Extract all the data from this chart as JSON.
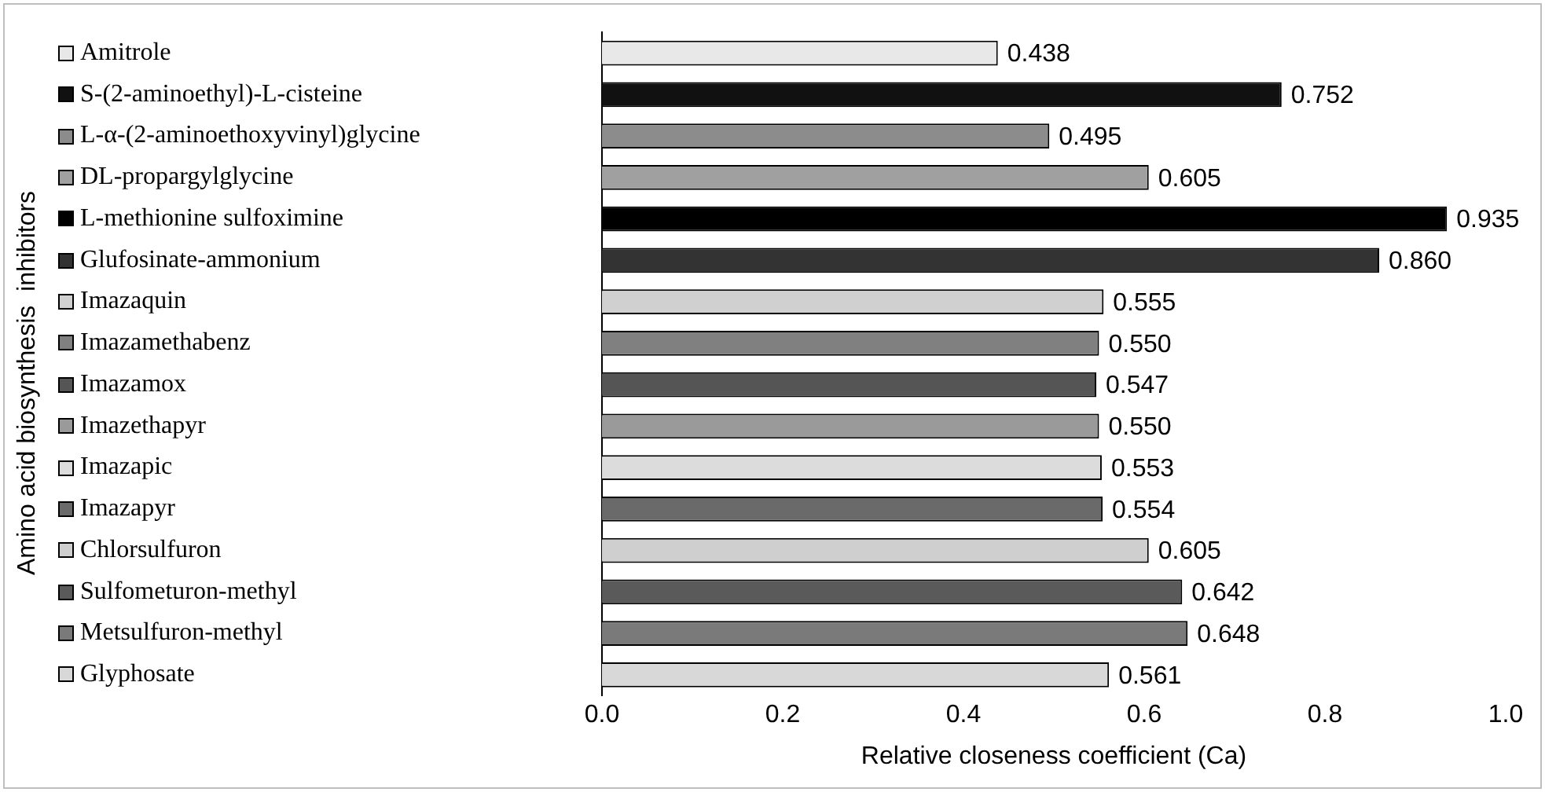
{
  "chart_data": {
    "type": "bar",
    "orientation": "horizontal",
    "xlabel": "Relative closeness coefficient (Ca)",
    "ylabel": "Amino acid biosynthesis  inhibitors",
    "categories": [
      "Amitrole",
      "S-(2-aminoethyl)-L-cisteine",
      "L-α-(2-aminoethoxyvinyl)glycine",
      "DL-propargylglycine",
      "L-methionine sulfoximine",
      "Glufosinate-ammonium",
      "Imazaquin",
      "Imazamethabenz",
      "Imazamox",
      "Imazethapyr",
      "Imazapic",
      "Imazapyr",
      "Chlorsulfuron",
      "Sulfometuron-methyl",
      "Metsulfuron-methyl",
      "Glyphosate"
    ],
    "values": [
      0.438,
      0.752,
      0.495,
      0.605,
      0.935,
      0.86,
      0.555,
      0.55,
      0.547,
      0.55,
      0.553,
      0.554,
      0.605,
      0.642,
      0.648,
      0.561
    ],
    "colors": [
      "#e8e8e8",
      "#111111",
      "#8c8c8c",
      "#a0a0a0",
      "#000000",
      "#333333",
      "#d0d0d0",
      "#808080",
      "#555555",
      "#9a9a9a",
      "#dcdcdc",
      "#6a6a6a",
      "#cfcfcf",
      "#5a5a5a",
      "#7a7a7a",
      "#d8d8d8"
    ],
    "value_labels": [
      "0.438",
      "0.752",
      "0.495",
      "0.605",
      "0.935",
      "0.860",
      "0.555",
      "0.550",
      "0.547",
      "0.550",
      "0.553",
      "0.554",
      "0.605",
      "0.642",
      "0.648",
      "0.561"
    ],
    "xlim": [
      0,
      1.0
    ],
    "xticks": [
      {
        "value": 0,
        "label": "0.0"
      },
      {
        "value": 0.2,
        "label": "0.2"
      },
      {
        "value": 0.4,
        "label": "0.4"
      },
      {
        "value": 0.6,
        "label": "0.6"
      },
      {
        "value": 0.8,
        "label": "0.8"
      },
      {
        "value": 1.0,
        "label": "1.0"
      }
    ],
    "grid": false,
    "legend": false
  }
}
